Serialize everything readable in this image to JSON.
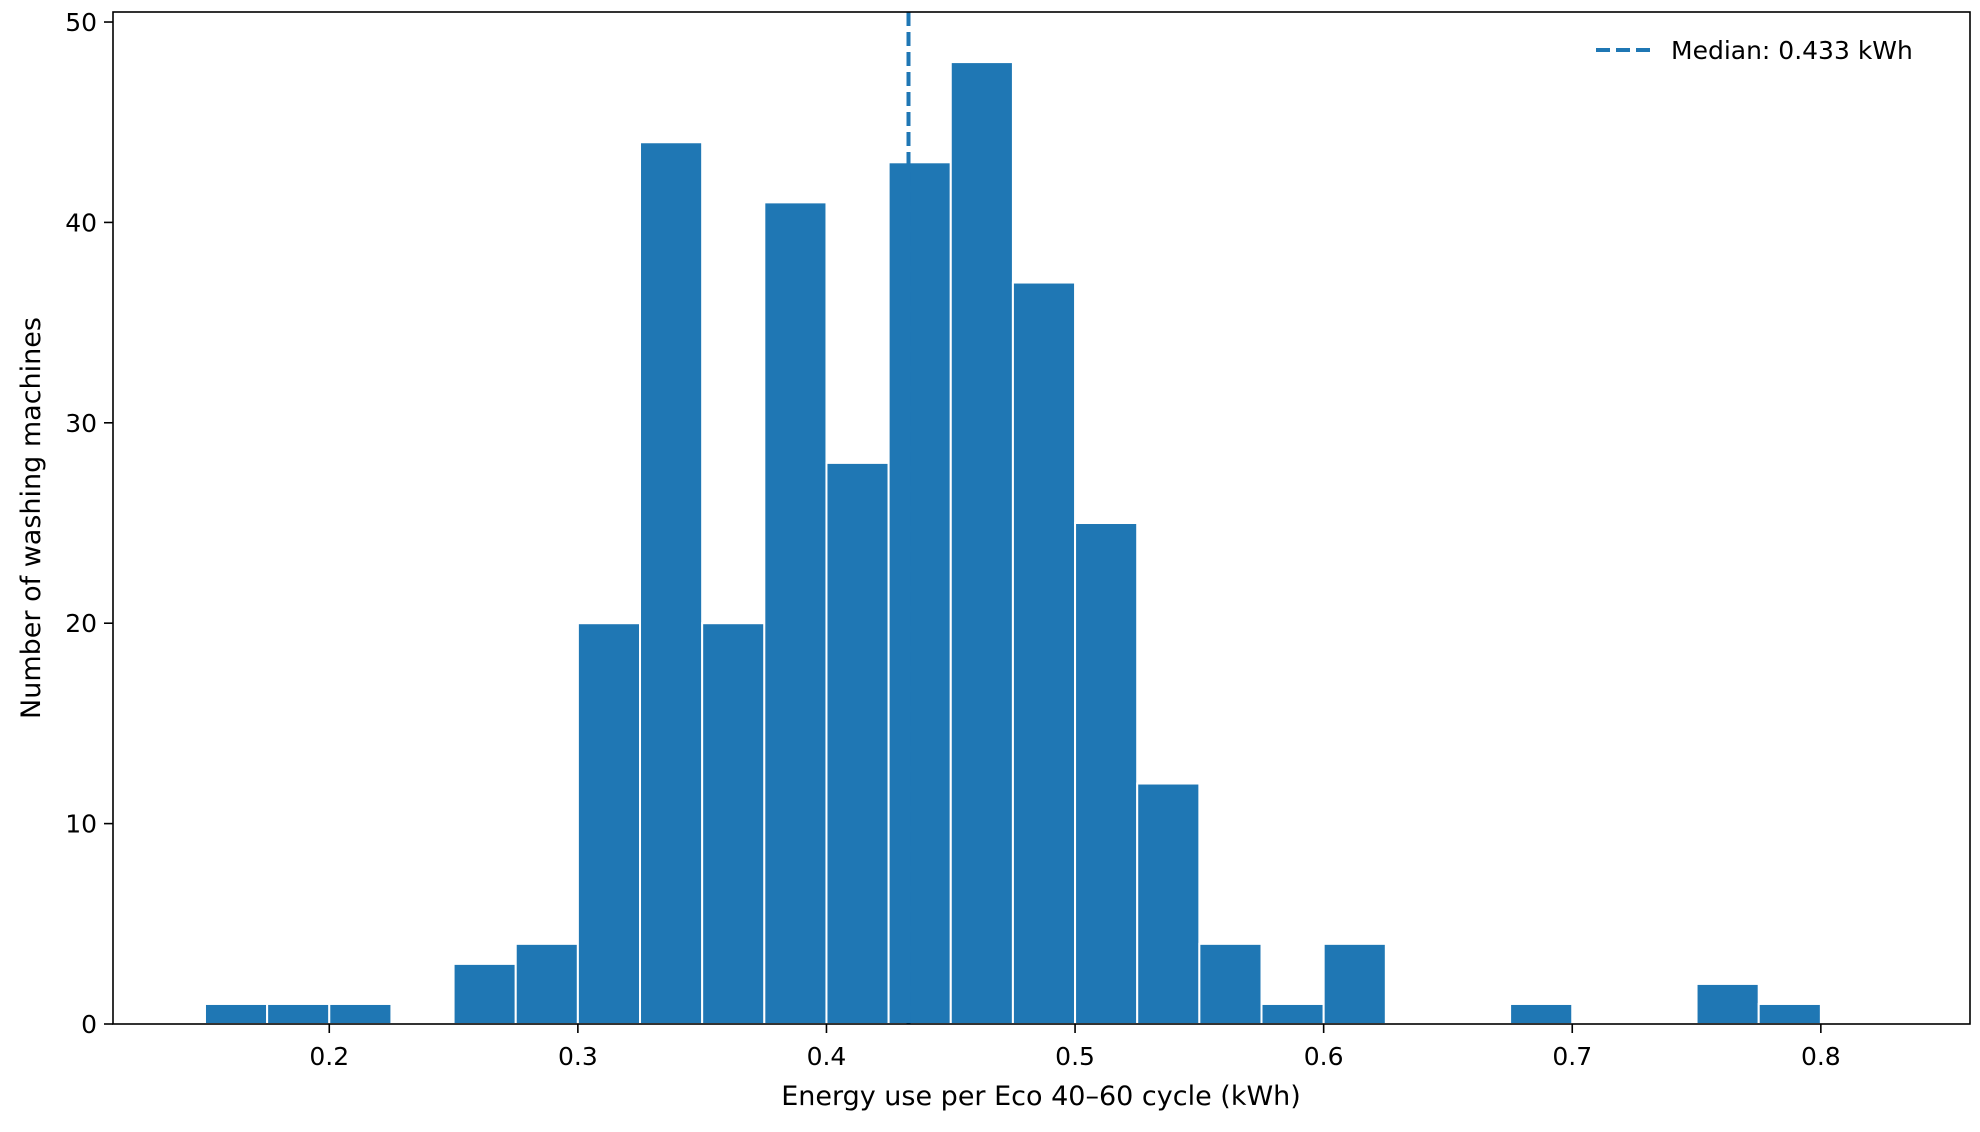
{
  "chart_data": {
    "type": "bar",
    "subtype": "histogram",
    "title": "",
    "xlabel": "Energy use per Eco 40–60 cycle (kWh)",
    "ylabel": "Number of washing machines",
    "xlim": [
      0.113,
      0.86
    ],
    "ylim": [
      0,
      50.5
    ],
    "bin_width": 0.025,
    "bins": [
      {
        "x0": 0.15,
        "x1": 0.175,
        "count": 1
      },
      {
        "x0": 0.175,
        "x1": 0.2,
        "count": 1
      },
      {
        "x0": 0.2,
        "x1": 0.225,
        "count": 1
      },
      {
        "x0": 0.225,
        "x1": 0.25,
        "count": 0
      },
      {
        "x0": 0.25,
        "x1": 0.275,
        "count": 3
      },
      {
        "x0": 0.275,
        "x1": 0.3,
        "count": 4
      },
      {
        "x0": 0.3,
        "x1": 0.325,
        "count": 20
      },
      {
        "x0": 0.325,
        "x1": 0.35,
        "count": 44
      },
      {
        "x0": 0.35,
        "x1": 0.375,
        "count": 20
      },
      {
        "x0": 0.375,
        "x1": 0.4,
        "count": 41
      },
      {
        "x0": 0.4,
        "x1": 0.425,
        "count": 28
      },
      {
        "x0": 0.425,
        "x1": 0.45,
        "count": 43
      },
      {
        "x0": 0.45,
        "x1": 0.475,
        "count": 48
      },
      {
        "x0": 0.475,
        "x1": 0.5,
        "count": 37
      },
      {
        "x0": 0.5,
        "x1": 0.525,
        "count": 25
      },
      {
        "x0": 0.525,
        "x1": 0.55,
        "count": 12
      },
      {
        "x0": 0.55,
        "x1": 0.575,
        "count": 4
      },
      {
        "x0": 0.575,
        "x1": 0.6,
        "count": 1
      },
      {
        "x0": 0.6,
        "x1": 0.625,
        "count": 4
      },
      {
        "x0": 0.625,
        "x1": 0.65,
        "count": 0
      },
      {
        "x0": 0.65,
        "x1": 0.675,
        "count": 0
      },
      {
        "x0": 0.675,
        "x1": 0.7,
        "count": 1
      },
      {
        "x0": 0.7,
        "x1": 0.725,
        "count": 0
      },
      {
        "x0": 0.725,
        "x1": 0.75,
        "count": 0
      },
      {
        "x0": 0.75,
        "x1": 0.775,
        "count": 2
      },
      {
        "x0": 0.775,
        "x1": 0.8,
        "count": 1
      },
      {
        "x0": 0.8,
        "x1": 0.825,
        "count": 0
      },
      {
        "x0": 0.825,
        "x1": 0.85,
        "count": 0
      }
    ],
    "x_ticks": [
      0.2,
      0.3,
      0.4,
      0.5,
      0.6,
      0.7,
      0.8
    ],
    "x_tick_labels": [
      "0.2",
      "0.3",
      "0.4",
      "0.5",
      "0.6",
      "0.7",
      "0.8"
    ],
    "y_ticks": [
      0,
      10,
      20,
      30,
      40,
      50
    ],
    "y_tick_labels": [
      "0",
      "10",
      "20",
      "30",
      "40",
      "50"
    ],
    "median": {
      "value": 0.433,
      "label": "Median: 0.433 kWh"
    },
    "legend": {
      "position": "top-right",
      "entries": [
        "Median: 0.433 kWh"
      ]
    },
    "grid": false,
    "colors": {
      "bar": "#1f77b4",
      "bar_edge": "#ffffff",
      "median_line": "#1f77b4",
      "axes": "#000000"
    }
  }
}
